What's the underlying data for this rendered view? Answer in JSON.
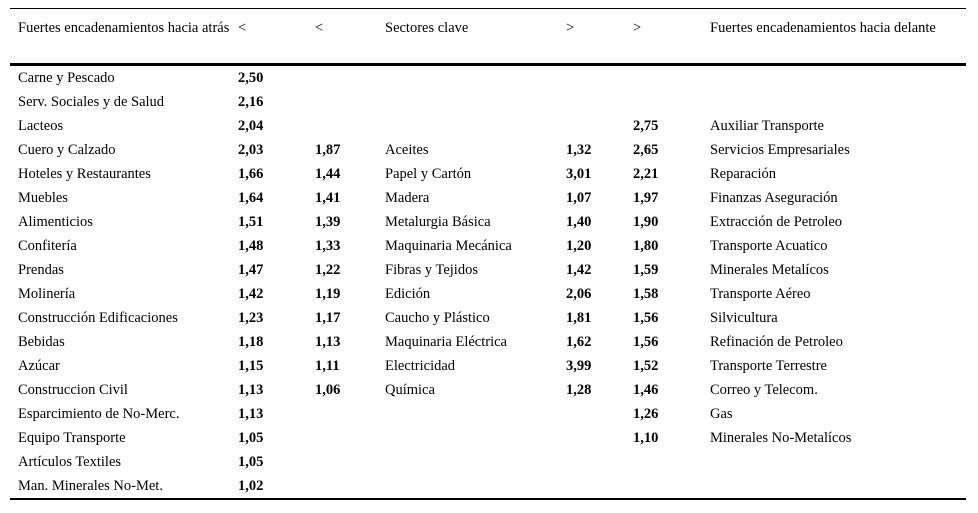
{
  "table": {
    "headers": [
      "Fuertes encadenamientos hacia atrás",
      "<",
      "<",
      "Sectores clave",
      ">",
      ">",
      "Fuertes encadenamientos hacia delante"
    ],
    "rows": [
      [
        "Carne y Pescado",
        "2,50",
        "",
        "",
        "",
        "",
        ""
      ],
      [
        "Serv. Sociales y de Salud",
        "2,16",
        "",
        "",
        "",
        "",
        ""
      ],
      [
        "Lacteos",
        "2,04",
        "",
        "",
        "",
        "2,75",
        "Auxiliar Transporte"
      ],
      [
        "Cuero y Calzado",
        "2,03",
        "1,87",
        "Aceites",
        "1,32",
        "2,65",
        "Servicios Empresariales"
      ],
      [
        "Hoteles y Restaurantes",
        "1,66",
        "1,44",
        "Papel y Cartón",
        "3,01",
        "2,21",
        "Reparación"
      ],
      [
        "Muebles",
        "1,64",
        "1,41",
        "Madera",
        "1,07",
        "1,97",
        "Finanzas Aseguración"
      ],
      [
        "Alimenticios",
        "1,51",
        "1,39",
        "Metalurgia Básica",
        "1,40",
        "1,90",
        "Extracción de Petroleo"
      ],
      [
        "Confitería",
        "1,48",
        "1,33",
        "Maquinaria Mecánica",
        "1,20",
        "1,80",
        "Transporte Acuatico"
      ],
      [
        "Prendas",
        "1,47",
        "1,22",
        "Fibras y Tejidos",
        "1,42",
        "1,59",
        "Minerales Metalícos"
      ],
      [
        "Molinería",
        "1,42",
        "1,19",
        "Edición",
        "2,06",
        "1,58",
        "Transporte Aéreo"
      ],
      [
        "Construcción Edificaciones",
        "1,23",
        "1,17",
        "Caucho y Plástico",
        "1,81",
        "1,56",
        "Silvicultura"
      ],
      [
        "Bebidas",
        "1,18",
        "1,13",
        "Maquinaria Eléctrica",
        "1,62",
        "1,56",
        "Refinación de Petroleo"
      ],
      [
        "Azúcar",
        "1,15",
        "1,11",
        "Electricidad",
        "3,99",
        "1,52",
        "Transporte Terrestre"
      ],
      [
        "Construccion Civil",
        "1,13",
        "1,06",
        "Química",
        "1,28",
        "1,46",
        "Correo y Telecom."
      ],
      [
        "Esparcimiento de No-Merc.",
        "1,13",
        "",
        "",
        "",
        "1,26",
        "Gas"
      ],
      [
        "Equipo Transporte",
        "1,05",
        "",
        "",
        "",
        "1,10",
        "Minerales No-Metalícos"
      ],
      [
        "Artículos Textiles",
        "1,05",
        "",
        "",
        "",
        "",
        ""
      ],
      [
        "Man. Minerales No-Met.",
        "1,02",
        "",
        "",
        "",
        "",
        ""
      ]
    ]
  }
}
